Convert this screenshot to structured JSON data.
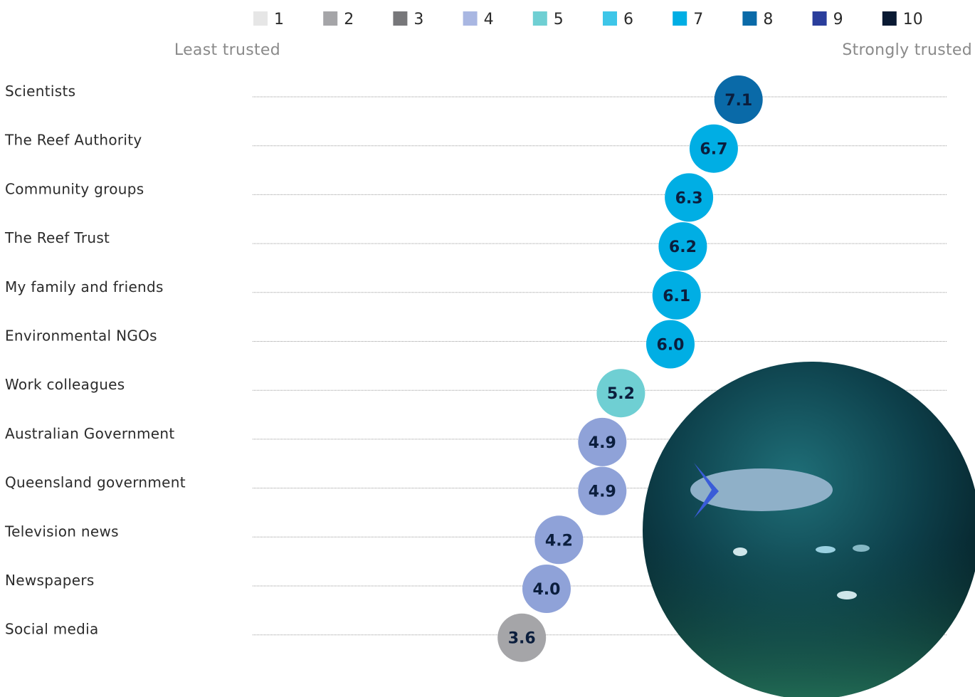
{
  "chart_data": {
    "type": "dot",
    "legend": {
      "labels": [
        "1",
        "2",
        "3",
        "4",
        "5",
        "6",
        "7",
        "8",
        "9",
        "10"
      ],
      "colors": [
        "#e6e6e6",
        "#a5a5a8",
        "#77777a",
        "#a9b7e2",
        "#6fcfd3",
        "#3ec6e8",
        "#00aee4",
        "#0a6aa8",
        "#2a3e9c",
        "#0a1a33"
      ]
    },
    "low_label": "Least trusted",
    "high_label": "Strongly trusted",
    "categories": [
      "Scientists",
      "The Reef Authority",
      "Community groups",
      "The Reef Trust",
      "My family and friends",
      "Environmental NGOs",
      "Work colleagues",
      "Australian Government",
      "Queensland government",
      "Television news",
      "Newspapers",
      "Social media"
    ],
    "values": [
      7.1,
      6.7,
      6.3,
      6.2,
      6.1,
      6.0,
      5.2,
      4.9,
      4.9,
      4.2,
      4.0,
      3.6
    ],
    "value_labels": [
      "7.1",
      "6.7",
      "6.3",
      "6.2",
      "6.1",
      "6.0",
      "5.2",
      "4.9",
      "4.9",
      "4.2",
      "4.0",
      "3.6"
    ],
    "colors": [
      "#0a6aa8",
      "#00aee4",
      "#00aee4",
      "#00aee4",
      "#00aee4",
      "#00aee4",
      "#6fcfd3",
      "#8fa2d8",
      "#8fa2d8",
      "#8fa2d8",
      "#8fa2d8",
      "#a5a5a8"
    ],
    "xlim": [
      0,
      10
    ]
  }
}
